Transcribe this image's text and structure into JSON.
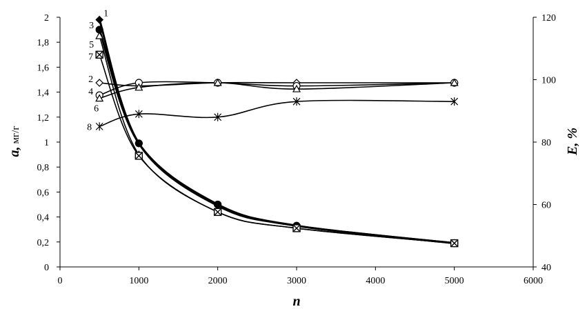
{
  "chart_data": {
    "type": "line",
    "xlabel": "n",
    "ylabel_left_symbol": "a,",
    "ylabel_left_unit": "мг/г",
    "ylabel_right": "E, %",
    "x_ticks": [
      "0",
      "1000",
      "2000",
      "3000",
      "4000",
      "5000",
      "6000"
    ],
    "y_left_ticks": [
      "0",
      "0,2",
      "0,4",
      "0,6",
      "0,8",
      "1",
      "1,2",
      "1,4",
      "1,6",
      "1,8",
      "2"
    ],
    "y_right_ticks": [
      "40",
      "60",
      "80",
      "100",
      "120"
    ],
    "xlim": [
      0,
      6000
    ],
    "ylim_left": [
      0,
      2
    ],
    "ylim_right": [
      40,
      120
    ],
    "grid": false,
    "legend": "none",
    "series": [
      {
        "name": "1",
        "axis": "left",
        "marker": "diamond-filled",
        "stroke": "thick",
        "x": [
          500,
          1000,
          2000,
          3000,
          5000
        ],
        "y": [
          1.98,
          0.99,
          0.49,
          0.33,
          0.19
        ]
      },
      {
        "name": "3",
        "axis": "left",
        "marker": "circle-filled",
        "stroke": "thick",
        "x": [
          500,
          1000,
          2000,
          3000,
          5000
        ],
        "y": [
          1.9,
          0.99,
          0.5,
          0.33,
          0.19
        ]
      },
      {
        "name": "5",
        "axis": "left",
        "marker": "triangle",
        "stroke": "thin",
        "x": [
          500,
          1000,
          2000,
          3000,
          5000
        ],
        "y": [
          1.85,
          0.9,
          0.44,
          0.31,
          0.19
        ]
      },
      {
        "name": "7",
        "axis": "left",
        "marker": "boxed-x",
        "stroke": "thin",
        "x": [
          500,
          1000,
          2000,
          3000,
          5000
        ],
        "y": [
          1.7,
          0.89,
          0.44,
          0.31,
          0.19
        ]
      },
      {
        "name": "2",
        "axis": "right",
        "marker": "diamond-open",
        "stroke": "thin",
        "x": [
          500,
          1000,
          2000,
          3000,
          5000
        ],
        "y": [
          99,
          98,
          99,
          99,
          99
        ]
      },
      {
        "name": "4",
        "axis": "right",
        "marker": "circle-open",
        "stroke": "thin",
        "x": [
          500,
          1000,
          2000,
          3000,
          5000
        ],
        "y": [
          95,
          99,
          99,
          98,
          99
        ]
      },
      {
        "name": "6",
        "axis": "right",
        "marker": "triangle",
        "stroke": "thin",
        "x": [
          500,
          1000,
          2000,
          3000,
          5000
        ],
        "y": [
          94,
          97.5,
          99,
          97,
          99
        ]
      },
      {
        "name": "8",
        "axis": "right",
        "marker": "star",
        "stroke": "thin",
        "x": [
          500,
          1000,
          2000,
          3000,
          5000
        ],
        "y": [
          85,
          89,
          88,
          93,
          93
        ]
      }
    ]
  }
}
